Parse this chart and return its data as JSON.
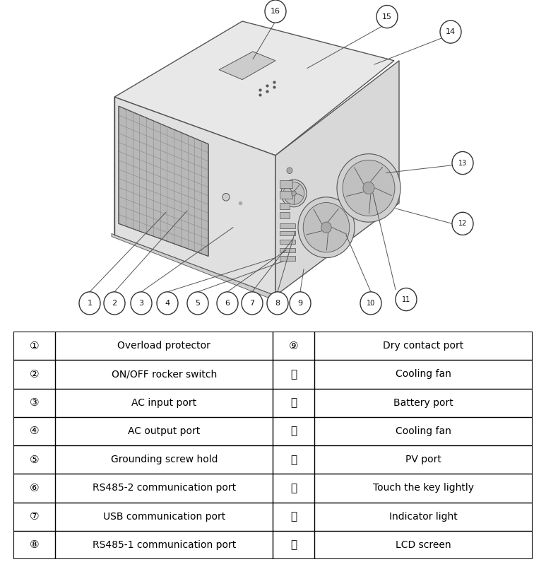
{
  "table_rows": [
    {
      "num": "①",
      "left_desc": "Overload protector",
      "num_r": "⑨",
      "right_desc": "Dry contact port"
    },
    {
      "num": "②",
      "left_desc": "ON/OFF rocker switch",
      "num_r": "Ⓗ",
      "right_desc": "Cooling fan"
    },
    {
      "num": "③",
      "left_desc": "AC input port",
      "num_r": "Ⓘ",
      "right_desc": "Battery port"
    },
    {
      "num": "④",
      "left_desc": "AC output port",
      "num_r": "Ⓙ",
      "right_desc": "Cooling fan"
    },
    {
      "num": "⑤",
      "left_desc": "Grounding screw hold",
      "num_r": "Ⓚ",
      "right_desc": "PV port"
    },
    {
      "num": "⑥",
      "left_desc": "RS485-2 communication port",
      "num_r": "Ⓛ",
      "right_desc": "Touch the key lightly"
    },
    {
      "num": "⑦",
      "left_desc": "USB communication port",
      "num_r": "Ⓜ",
      "right_desc": "Indicator light"
    },
    {
      "num": "⑧",
      "left_desc": "RS485-1 communication port",
      "num_r": "Ⓝ",
      "right_desc": "LCD screen"
    }
  ],
  "num_labels_left": [
    "①",
    "②",
    "③",
    "④",
    "⑤",
    "⑥",
    "⑦",
    "⑧"
  ],
  "num_labels_right": [
    "⑨",
    "Ⓗ",
    "Ⓘ",
    "Ⓙ",
    "Ⓚ",
    "Ⓛ",
    "Ⓜ",
    "Ⓝ"
  ],
  "table_border_color": "#000000",
  "table_text_color": "#000000",
  "table_font_size": 10,
  "background_color": "#ffffff",
  "edge_color": "#555555",
  "fig_width": 7.73,
  "fig_height": 7.95,
  "dpi": 100
}
